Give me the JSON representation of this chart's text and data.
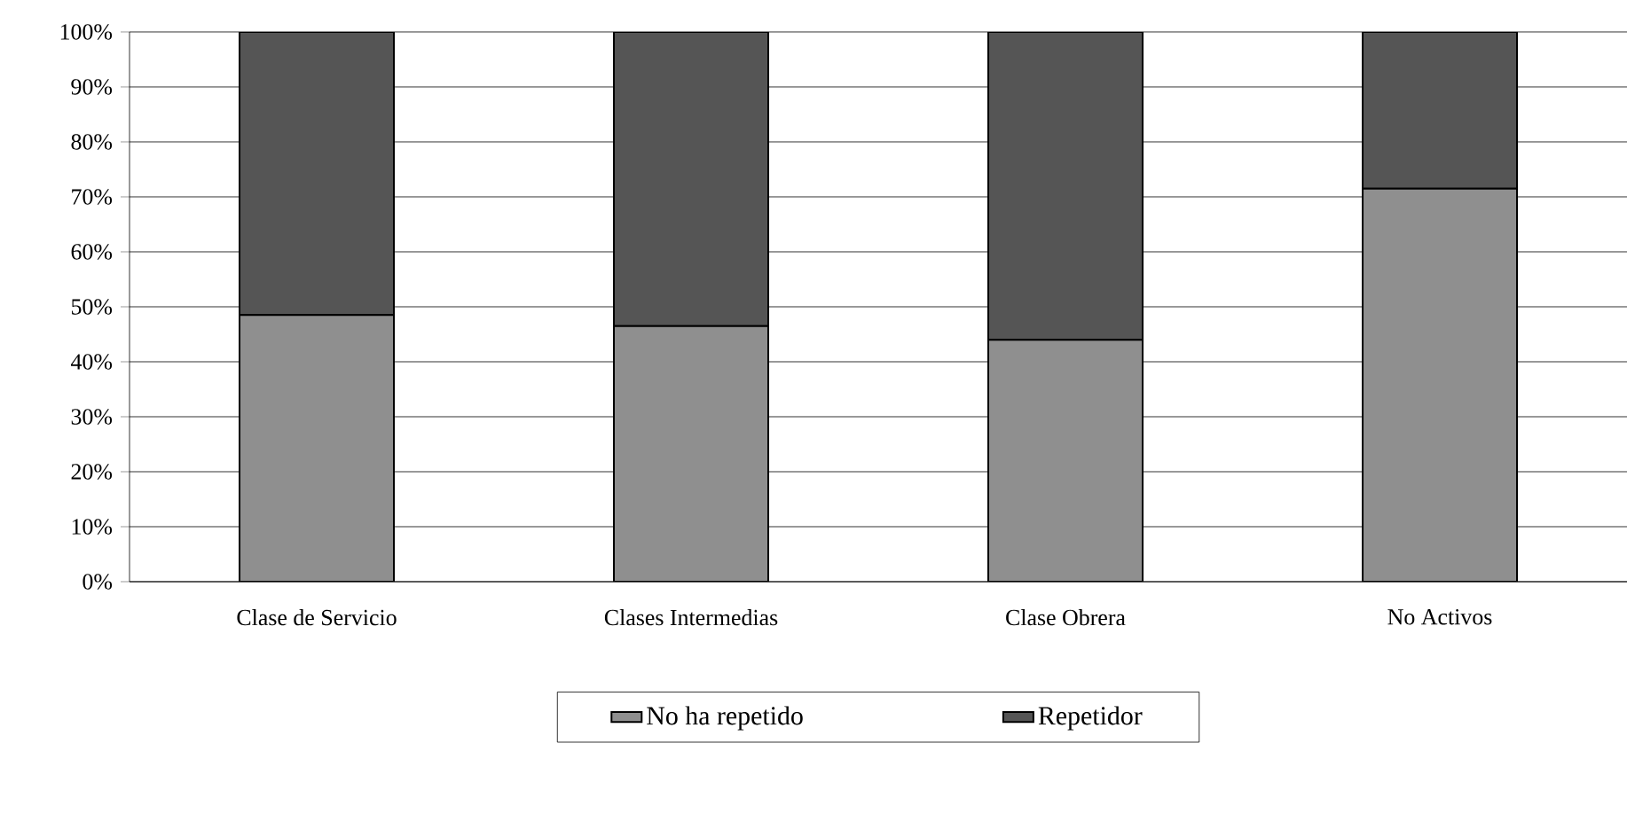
{
  "chart_data": {
    "type": "bar",
    "stacked": true,
    "grid": "y",
    "legend": "bottom",
    "categories": [
      "Clase de Servicio",
      "Clases Intermedias",
      "Clase Obrera",
      "No Activos"
    ],
    "series": [
      {
        "name": "No ha repetido",
        "color": "#8f8f8f",
        "values": [
          48.5,
          46.5,
          44,
          71.5
        ]
      },
      {
        "name": "Repetidor",
        "color": "#555555",
        "values": [
          51.5,
          53.5,
          56,
          28.5
        ]
      }
    ],
    "ylim": [
      0,
      100
    ],
    "yticks": [
      {
        "value": 0,
        "label": "0%"
      },
      {
        "value": 10,
        "label": "10%"
      },
      {
        "value": 20,
        "label": "20%"
      },
      {
        "value": 30,
        "label": "30%"
      },
      {
        "value": 40,
        "label": "40%"
      },
      {
        "value": 50,
        "label": "50%"
      },
      {
        "value": 60,
        "label": "60%"
      },
      {
        "value": 70,
        "label": "70%"
      },
      {
        "value": 80,
        "label": "80%"
      },
      {
        "value": 90,
        "label": "90%"
      },
      {
        "value": 100,
        "label": "100%"
      }
    ]
  }
}
